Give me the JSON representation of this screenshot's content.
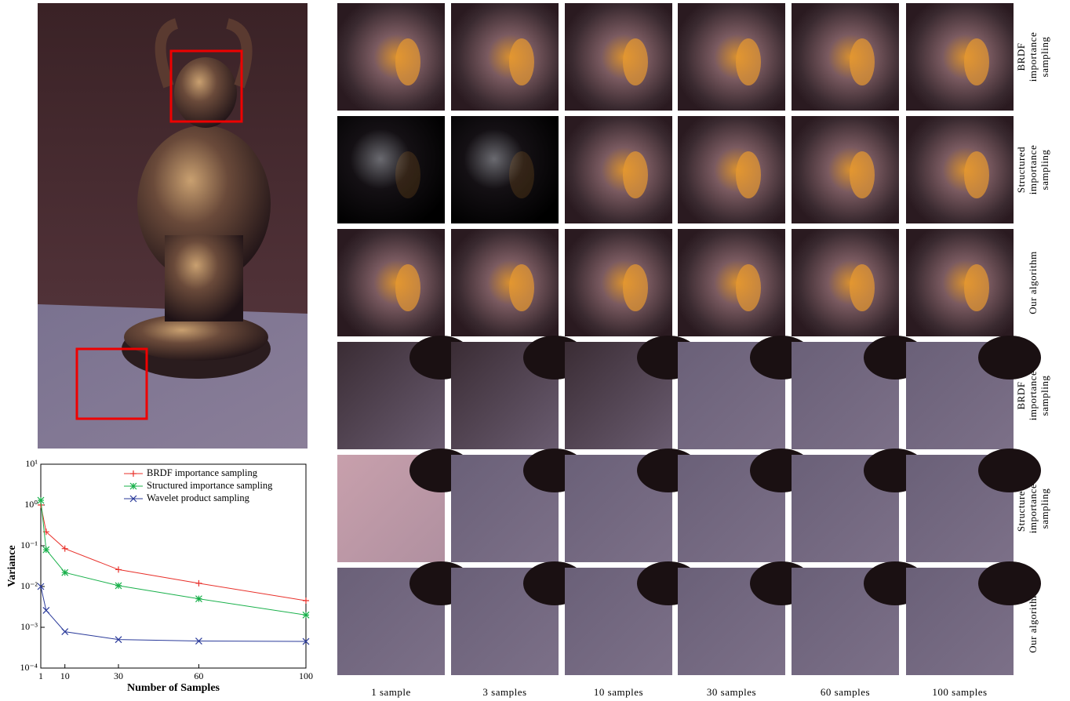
{
  "chart_data": {
    "type": "line",
    "xlabel": "Number of Samples",
    "ylabel": "Variance",
    "xlim": [
      1,
      100
    ],
    "xticks": [
      1,
      10,
      30,
      60,
      100
    ],
    "ylim": [
      0.0001,
      10
    ],
    "log_y": true,
    "yticks": [
      {
        "value": 0.0001,
        "label": "10⁻⁴"
      },
      {
        "value": 0.001,
        "label": "10⁻³"
      },
      {
        "value": 0.01,
        "label": "10⁻²"
      },
      {
        "value": 0.1,
        "label": "10⁻¹"
      },
      {
        "value": 1,
        "label": "10⁰"
      },
      {
        "value": 10,
        "label": "10¹"
      }
    ],
    "legend": "upper right",
    "x": [
      1,
      3,
      10,
      30,
      60,
      100
    ],
    "series": [
      {
        "name": "BRDF importance sampling",
        "color": "#e8302a",
        "marker": "+",
        "values": [
          1.0,
          0.22,
          0.085,
          0.026,
          0.012,
          0.0045
        ]
      },
      {
        "name": "Structured importance sampling",
        "color": "#18b04a",
        "marker": "*",
        "values": [
          1.3,
          0.08,
          0.022,
          0.0105,
          0.005,
          0.002
        ]
      },
      {
        "name": "Wavelet product sampling",
        "color": "#2a3a9a",
        "marker": "x",
        "values": [
          0.01,
          0.0026,
          0.00078,
          0.0005,
          0.00046,
          0.00045
        ]
      }
    ]
  },
  "columns": [
    "1 sample",
    "3 samples",
    "10 samples",
    "30 samples",
    "60 samples",
    "100 samples"
  ],
  "rows": [
    [
      "BRDF",
      "importance",
      "sampling"
    ],
    [
      "Structured",
      "importance",
      "sampling"
    ],
    [
      "Our algorithm"
    ],
    [
      "BRDF",
      "importance",
      "sampling"
    ],
    [
      "Structured",
      "importance",
      "sampling"
    ],
    [
      "Our algorithm"
    ]
  ]
}
